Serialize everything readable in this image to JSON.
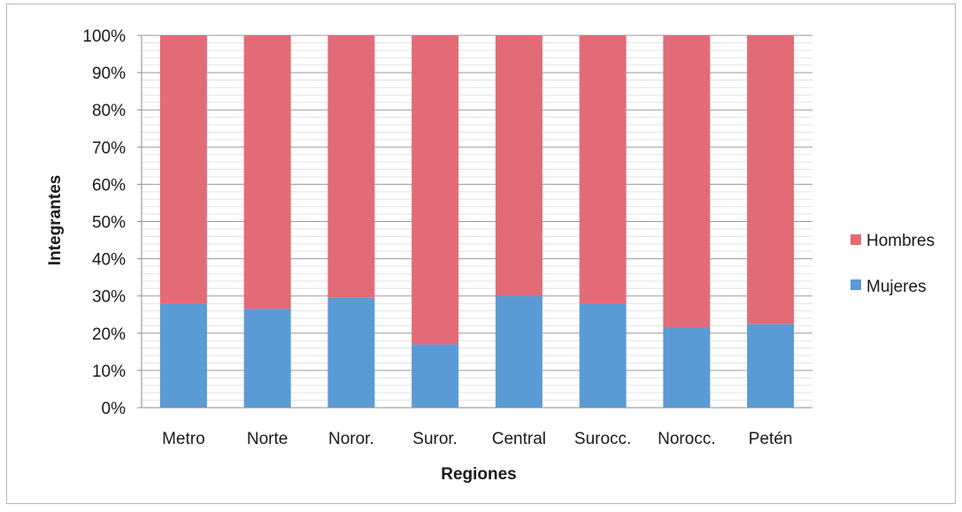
{
  "chart_data": {
    "type": "bar",
    "stacked": true,
    "percent_stacked": true,
    "title": "",
    "xlabel": "Regiones",
    "ylabel": "Integrantes",
    "categories": [
      "Metro",
      "Norte",
      "Noror.",
      "Suror.",
      "Central",
      "Surocc.",
      "Norocc.",
      "Petén"
    ],
    "ylim": [
      0,
      100
    ],
    "yticks": [
      "0%",
      "10%",
      "20%",
      "30%",
      "40%",
      "50%",
      "60%",
      "70%",
      "80%",
      "90%",
      "100%"
    ],
    "grid": true,
    "legend_position": "right",
    "series": [
      {
        "name": "Mujeres",
        "color": "#5b9bd5",
        "values": [
          28,
          26.5,
          29.5,
          17,
          30,
          28,
          21.5,
          22.5
        ]
      },
      {
        "name": "Hombres",
        "color": "#e36b78",
        "values": [
          72,
          73.5,
          70.5,
          83,
          70,
          72,
          78.5,
          77.5
        ]
      }
    ],
    "legend": [
      "Hombres",
      "Mujeres"
    ]
  }
}
